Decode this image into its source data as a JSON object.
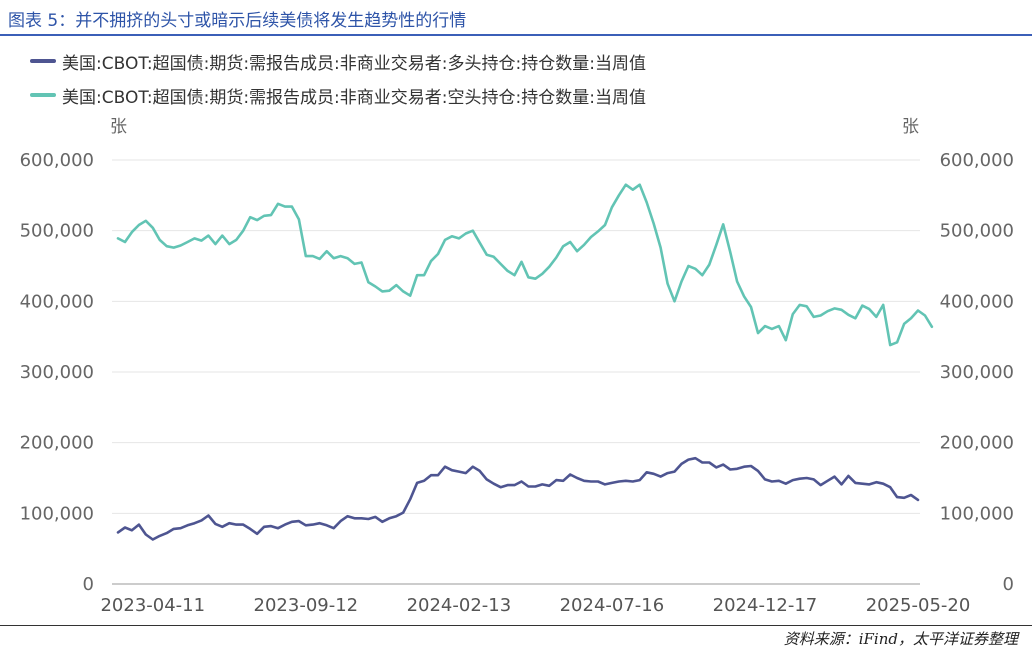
{
  "figure": {
    "title": "图表 5：并不拥挤的头寸或暗示后续美债将发生趋势性的行情",
    "source": "资料来源：iFind，太平洋证券整理"
  },
  "colors": {
    "long": "#4e5591",
    "short": "#62c4b4",
    "grid": "#e6e6e6",
    "axis_text": "#666666",
    "title": "#2e54a8"
  },
  "chart_data": {
    "type": "line",
    "y_left_label": "张",
    "y_right_label": "张",
    "ylim": [
      0,
      600000
    ],
    "yticks": [
      "0",
      "100,000",
      "200,000",
      "300,000",
      "400,000",
      "500,000",
      "600,000"
    ],
    "ytick_values": [
      0,
      100000,
      200000,
      300000,
      400000,
      500000,
      600000
    ],
    "xlim": [
      "2023-03-07",
      "2025-05-20"
    ],
    "xticks": [
      "2023-04-11",
      "2023-09-12",
      "2024-02-13",
      "2024-07-16",
      "2024-12-17",
      "2025-05-20"
    ],
    "grid": true,
    "legend_position": "top-left",
    "series": [
      {
        "name": "美国:CBOT:超国债:期货:需报告成员:非商业交易者:多头持仓:持仓数量:当周值",
        "color": "#4e5591",
        "points": [
          [
            "2023-03-07",
            73000
          ],
          [
            "2023-03-14",
            80000
          ],
          [
            "2023-03-21",
            76000
          ],
          [
            "2023-03-28",
            84000
          ],
          [
            "2023-04-04",
            70000
          ],
          [
            "2023-04-11",
            63000
          ],
          [
            "2023-04-18",
            68000
          ],
          [
            "2023-04-25",
            72000
          ],
          [
            "2023-05-02",
            78000
          ],
          [
            "2023-05-09",
            79000
          ],
          [
            "2023-05-16",
            83000
          ],
          [
            "2023-05-23",
            86000
          ],
          [
            "2023-05-30",
            90000
          ],
          [
            "2023-06-06",
            97000
          ],
          [
            "2023-06-13",
            85000
          ],
          [
            "2023-06-20",
            81000
          ],
          [
            "2023-06-27",
            86000
          ],
          [
            "2023-07-04",
            84000
          ],
          [
            "2023-07-11",
            84000
          ],
          [
            "2023-07-18",
            78000
          ],
          [
            "2023-07-25",
            71000
          ],
          [
            "2023-08-01",
            81000
          ],
          [
            "2023-08-08",
            82000
          ],
          [
            "2023-08-15",
            79000
          ],
          [
            "2023-08-22",
            84000
          ],
          [
            "2023-08-29",
            88000
          ],
          [
            "2023-09-05",
            89000
          ],
          [
            "2023-09-12",
            83000
          ],
          [
            "2023-09-19",
            84000
          ],
          [
            "2023-09-26",
            86000
          ],
          [
            "2023-10-03",
            83000
          ],
          [
            "2023-10-10",
            79000
          ],
          [
            "2023-10-17",
            89000
          ],
          [
            "2023-10-24",
            96000
          ],
          [
            "2023-10-31",
            93000
          ],
          [
            "2023-11-07",
            93000
          ],
          [
            "2023-11-14",
            92000
          ],
          [
            "2023-11-21",
            95000
          ],
          [
            "2023-11-28",
            88000
          ],
          [
            "2023-12-05",
            93000
          ],
          [
            "2023-12-12",
            96000
          ],
          [
            "2023-12-19",
            101000
          ],
          [
            "2023-12-26",
            120000
          ],
          [
            "2024-01-02",
            143000
          ],
          [
            "2024-01-09",
            146000
          ],
          [
            "2024-01-16",
            154000
          ],
          [
            "2024-01-23",
            154000
          ],
          [
            "2024-01-30",
            166000
          ],
          [
            "2024-02-06",
            161000
          ],
          [
            "2024-02-13",
            159000
          ],
          [
            "2024-02-20",
            157000
          ],
          [
            "2024-02-27",
            166000
          ],
          [
            "2024-03-05",
            160000
          ],
          [
            "2024-03-12",
            148000
          ],
          [
            "2024-03-19",
            142000
          ],
          [
            "2024-03-26",
            137000
          ],
          [
            "2024-04-02",
            140000
          ],
          [
            "2024-04-09",
            140000
          ],
          [
            "2024-04-16",
            145000
          ],
          [
            "2024-04-23",
            138000
          ],
          [
            "2024-04-30",
            138000
          ],
          [
            "2024-05-07",
            141000
          ],
          [
            "2024-05-14",
            139000
          ],
          [
            "2024-05-21",
            147000
          ],
          [
            "2024-05-28",
            146000
          ],
          [
            "2024-06-04",
            155000
          ],
          [
            "2024-06-11",
            150000
          ],
          [
            "2024-06-18",
            146000
          ],
          [
            "2024-06-25",
            145000
          ],
          [
            "2024-07-02",
            145000
          ],
          [
            "2024-07-09",
            141000
          ],
          [
            "2024-07-16",
            143000
          ],
          [
            "2024-07-23",
            145000
          ],
          [
            "2024-07-30",
            146000
          ],
          [
            "2024-08-06",
            145000
          ],
          [
            "2024-08-13",
            147000
          ],
          [
            "2024-08-20",
            158000
          ],
          [
            "2024-08-27",
            156000
          ],
          [
            "2024-09-03",
            152000
          ],
          [
            "2024-09-10",
            157000
          ],
          [
            "2024-09-17",
            159000
          ],
          [
            "2024-09-24",
            170000
          ],
          [
            "2024-10-01",
            176000
          ],
          [
            "2024-10-08",
            178000
          ],
          [
            "2024-10-15",
            172000
          ],
          [
            "2024-10-22",
            172000
          ],
          [
            "2024-10-29",
            165000
          ],
          [
            "2024-11-05",
            169000
          ],
          [
            "2024-11-12",
            162000
          ],
          [
            "2024-11-19",
            163000
          ],
          [
            "2024-11-26",
            166000
          ],
          [
            "2024-12-03",
            167000
          ],
          [
            "2024-12-10",
            160000
          ],
          [
            "2024-12-17",
            148000
          ],
          [
            "2024-12-24",
            145000
          ],
          [
            "2024-12-31",
            146000
          ],
          [
            "2025-01-07",
            142000
          ],
          [
            "2025-01-14",
            147000
          ],
          [
            "2025-01-21",
            149000
          ],
          [
            "2025-01-28",
            150000
          ],
          [
            "2025-02-04",
            148000
          ],
          [
            "2025-02-11",
            140000
          ],
          [
            "2025-02-18",
            146000
          ],
          [
            "2025-02-25",
            152000
          ],
          [
            "2025-03-04",
            141000
          ],
          [
            "2025-03-11",
            153000
          ],
          [
            "2025-03-18",
            143000
          ],
          [
            "2025-03-25",
            142000
          ],
          [
            "2025-04-01",
            141000
          ],
          [
            "2025-04-08",
            144000
          ],
          [
            "2025-04-15",
            142000
          ],
          [
            "2025-04-22",
            137000
          ],
          [
            "2025-04-29",
            123000
          ],
          [
            "2025-05-06",
            122000
          ],
          [
            "2025-05-13",
            126000
          ],
          [
            "2025-05-20",
            119000
          ]
        ]
      },
      {
        "name": "美国:CBOT:超国债:期货:需报告成员:非商业交易者:空头持仓:持仓数量:当周值",
        "color": "#62c4b4",
        "points": [
          [
            "2023-03-07",
            489000
          ],
          [
            "2023-03-14",
            484000
          ],
          [
            "2023-03-21",
            498000
          ],
          [
            "2023-03-28",
            508000
          ],
          [
            "2023-04-04",
            514000
          ],
          [
            "2023-04-11",
            504000
          ],
          [
            "2023-04-18",
            487000
          ],
          [
            "2023-04-25",
            478000
          ],
          [
            "2023-05-02",
            476000
          ],
          [
            "2023-05-09",
            479000
          ],
          [
            "2023-05-16",
            484000
          ],
          [
            "2023-05-23",
            489000
          ],
          [
            "2023-05-30",
            486000
          ],
          [
            "2023-06-06",
            493000
          ],
          [
            "2023-06-13",
            481000
          ],
          [
            "2023-06-20",
            493000
          ],
          [
            "2023-06-27",
            481000
          ],
          [
            "2023-07-04",
            487000
          ],
          [
            "2023-07-11",
            500000
          ],
          [
            "2023-07-18",
            519000
          ],
          [
            "2023-07-25",
            515000
          ],
          [
            "2023-08-01",
            521000
          ],
          [
            "2023-08-08",
            522000
          ],
          [
            "2023-08-15",
            538000
          ],
          [
            "2023-08-22",
            534000
          ],
          [
            "2023-08-29",
            534000
          ],
          [
            "2023-09-05",
            516000
          ],
          [
            "2023-09-12",
            464000
          ],
          [
            "2023-09-19",
            464000
          ],
          [
            "2023-09-26",
            460000
          ],
          [
            "2023-10-03",
            471000
          ],
          [
            "2023-10-10",
            461000
          ],
          [
            "2023-10-17",
            464000
          ],
          [
            "2023-10-24",
            461000
          ],
          [
            "2023-10-31",
            453000
          ],
          [
            "2023-11-07",
            455000
          ],
          [
            "2023-11-14",
            427000
          ],
          [
            "2023-11-21",
            421000
          ],
          [
            "2023-11-28",
            414000
          ],
          [
            "2023-12-05",
            415000
          ],
          [
            "2023-12-12",
            423000
          ],
          [
            "2023-12-19",
            414000
          ],
          [
            "2023-12-26",
            408000
          ],
          [
            "2024-01-02",
            437000
          ],
          [
            "2024-01-09",
            437000
          ],
          [
            "2024-01-16",
            457000
          ],
          [
            "2024-01-23",
            467000
          ],
          [
            "2024-01-30",
            487000
          ],
          [
            "2024-02-06",
            492000
          ],
          [
            "2024-02-13",
            489000
          ],
          [
            "2024-02-20",
            496000
          ],
          [
            "2024-02-27",
            500000
          ],
          [
            "2024-03-05",
            483000
          ],
          [
            "2024-03-12",
            466000
          ],
          [
            "2024-03-19",
            463000
          ],
          [
            "2024-03-26",
            453000
          ],
          [
            "2024-04-02",
            443000
          ],
          [
            "2024-04-09",
            437000
          ],
          [
            "2024-04-16",
            456000
          ],
          [
            "2024-04-23",
            434000
          ],
          [
            "2024-04-30",
            432000
          ],
          [
            "2024-05-07",
            439000
          ],
          [
            "2024-05-14",
            449000
          ],
          [
            "2024-05-21",
            462000
          ],
          [
            "2024-05-28",
            478000
          ],
          [
            "2024-06-04",
            484000
          ],
          [
            "2024-06-11",
            471000
          ],
          [
            "2024-06-18",
            480000
          ],
          [
            "2024-06-25",
            491000
          ],
          [
            "2024-07-02",
            499000
          ],
          [
            "2024-07-09",
            508000
          ],
          [
            "2024-07-16",
            533000
          ],
          [
            "2024-07-23",
            550000
          ],
          [
            "2024-07-30",
            565000
          ],
          [
            "2024-08-06",
            558000
          ],
          [
            "2024-08-13",
            565000
          ],
          [
            "2024-08-20",
            540000
          ],
          [
            "2024-08-27",
            510000
          ],
          [
            "2024-09-03",
            476000
          ],
          [
            "2024-09-10",
            425000
          ],
          [
            "2024-09-17",
            400000
          ],
          [
            "2024-09-24",
            428000
          ],
          [
            "2024-10-01",
            450000
          ],
          [
            "2024-10-08",
            446000
          ],
          [
            "2024-10-15",
            437000
          ],
          [
            "2024-10-22",
            452000
          ],
          [
            "2024-10-29",
            480000
          ],
          [
            "2024-11-05",
            509000
          ],
          [
            "2024-11-12",
            470000
          ],
          [
            "2024-11-19",
            428000
          ],
          [
            "2024-11-26",
            407000
          ],
          [
            "2024-12-03",
            392000
          ],
          [
            "2024-12-10",
            355000
          ],
          [
            "2024-12-17",
            365000
          ],
          [
            "2024-12-24",
            361000
          ],
          [
            "2024-12-31",
            365000
          ],
          [
            "2025-01-07",
            345000
          ],
          [
            "2025-01-14",
            382000
          ],
          [
            "2025-01-21",
            395000
          ],
          [
            "2025-01-28",
            393000
          ],
          [
            "2025-02-04",
            378000
          ],
          [
            "2025-02-11",
            380000
          ],
          [
            "2025-02-18",
            386000
          ],
          [
            "2025-02-25",
            390000
          ],
          [
            "2025-03-04",
            388000
          ],
          [
            "2025-03-11",
            381000
          ],
          [
            "2025-03-18",
            376000
          ],
          [
            "2025-03-25",
            394000
          ],
          [
            "2025-04-01",
            389000
          ],
          [
            "2025-04-08",
            378000
          ],
          [
            "2025-04-15",
            395000
          ],
          [
            "2025-04-22",
            338000
          ],
          [
            "2025-04-29",
            342000
          ],
          [
            "2025-05-06",
            368000
          ],
          [
            "2025-05-13",
            376000
          ],
          [
            "2025-05-20",
            387000
          ],
          [
            "2025-05-27",
            380000
          ],
          [
            "2025-06-03",
            364000
          ]
        ]
      }
    ]
  }
}
